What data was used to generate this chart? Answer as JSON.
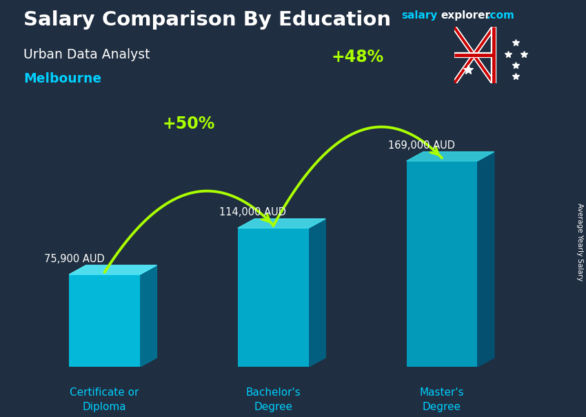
{
  "title_salary": "Salary Comparison By Education",
  "subtitle_job": "Urban Data Analyst",
  "subtitle_city": "Melbourne",
  "ylabel_rotated": "Average Yearly Salary",
  "categories": [
    "Certificate or\nDiploma",
    "Bachelor's\nDegree",
    "Master's\nDegree"
  ],
  "values": [
    75900,
    114000,
    169000
  ],
  "value_labels": [
    "75,900 AUD",
    "114,000 AUD",
    "169,000 AUD"
  ],
  "pct_labels": [
    "+50%",
    "+48%"
  ],
  "pct_color": "#aaff00",
  "figsize": [
    8.5,
    6.06
  ],
  "dpi": 100,
  "colors_front": [
    "#00ccee",
    "#00bbdd",
    "#00aacc"
  ],
  "colors_top": [
    "#55eeff",
    "#44ddee",
    "#33ccdd"
  ],
  "colors_side": [
    "#007799",
    "#006688",
    "#005577"
  ],
  "bar_width": 0.42,
  "bg_color": [
    0.12,
    0.18,
    0.25
  ],
  "watermark_salary_color": "#00cfff",
  "watermark_explorer_color": "#ffffff",
  "watermark_dot_com_color": "#00cfff",
  "subtitle_city_color": "#00cfff"
}
